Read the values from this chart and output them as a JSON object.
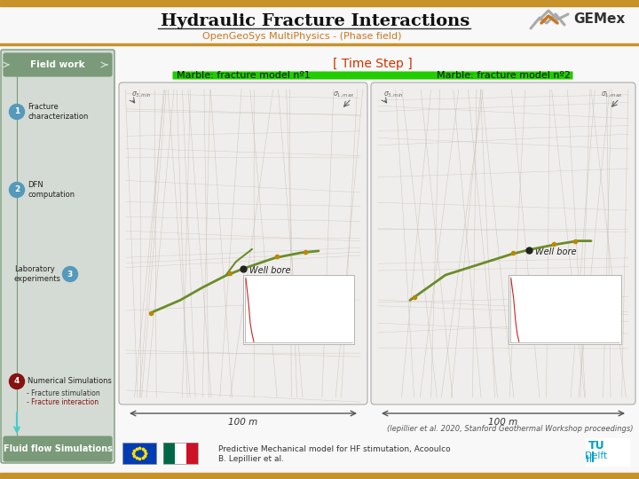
{
  "title_text": "Hydraulic Fracture Interactions",
  "subtitle": "OpenGeoSys MultiPhysics - (Phase field)",
  "bg_color": "#f8f8f8",
  "orange_bar_color": "#c8922a",
  "sidebar_bg": "#d4dbd4",
  "sidebar_border": "#7a9a7a",
  "sidebar_title_bg": "#7a9a7a",
  "sidebar_title_text": "Field work",
  "sidebar_bottom_bg": "#7a9a7a",
  "sidebar_bottom_text": "Fluid flow Simulations",
  "step1_color": "#5599bb",
  "step2_color": "#5599bb",
  "step3_color": "#5599bb",
  "step4_color": "#881111",
  "timestep_label": "[ Time Step ]",
  "timestep_color": "#cc3300",
  "progress_color": "#22cc00",
  "model1_title": "Marble: fracture model nº1",
  "model2_title": "Marble: fracture model nº2",
  "panel_bg": "#f5f5f5",
  "panel_border": "#aaaaaa",
  "map_bg": "#f0eeec",
  "grid_color": "#c8c0b8",
  "fracture_color": "#6b8c2a",
  "marker_red": "#dd1111",
  "wellbore_color": "#222222",
  "scale_color": "#555555",
  "citation": "(lepillier et al. 2020, Stanford Geothermal Workshop proceedings)",
  "credit_line1": "Predictive Mechanical model for HF stimutation, Acooulco",
  "credit_line2": "B. Lepillier et al.",
  "gemex_gray": "#888888",
  "gemex_orange": "#c87820",
  "tudelft_color": "#00a0c8",
  "cyan_arrow": "#44cccc",
  "scale_label": "100 m"
}
